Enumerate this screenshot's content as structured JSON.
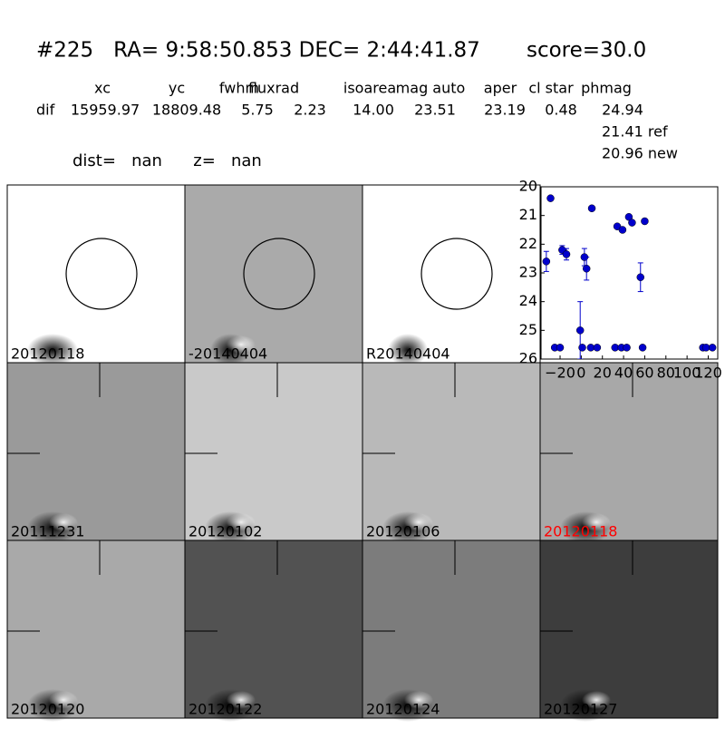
{
  "header": {
    "title": "#225   RA= 9:58:50.853 DEC= 2:44:41.87       score=30.0",
    "columns": [
      "xc",
      "yc",
      "fwhm",
      "fluxrad",
      "isoarea",
      "mag auto",
      "aper",
      "cl star",
      "phmag"
    ],
    "row_label": "dif",
    "row": [
      "15959.97",
      "18809.48",
      "5.75",
      "2.23",
      "14.00",
      "23.51",
      "23.19",
      "0.48",
      "24.94"
    ],
    "extra": [
      "21.41 ref",
      "20.96 new"
    ],
    "dist_line": "dist=   nan      z=   nan"
  },
  "tiles": [
    {
      "label": "20120118"
    },
    {
      "label": "-20140404"
    },
    {
      "label": "R20140404"
    },
    {
      "label": "20111231"
    },
    {
      "label": "20120102"
    },
    {
      "label": "20120106"
    },
    {
      "label": "20120118"
    },
    {
      "label": "20120120"
    },
    {
      "label": "20120122"
    },
    {
      "label": "20120124"
    },
    {
      "label": "20120127"
    }
  ],
  "chart_data": {
    "type": "scatter",
    "color": "#0000cc",
    "x": [
      -33,
      -29,
      -25,
      -20,
      -18,
      -14,
      -1,
      1,
      3,
      5,
      10,
      9,
      15,
      32,
      38,
      43,
      34,
      39,
      45,
      48,
      56,
      58,
      60,
      115,
      118,
      124
    ],
    "values": [
      22.6,
      20.4,
      25.6,
      25.6,
      22.2,
      22.35,
      25.0,
      25.6,
      22.45,
      22.85,
      20.75,
      25.6,
      25.6,
      25.6,
      25.6,
      25.6,
      21.38,
      21.5,
      21.05,
      21.25,
      23.15,
      25.6,
      21.2,
      25.6,
      25.6,
      25.6
    ],
    "errors": [
      0.35,
      null,
      null,
      null,
      0.15,
      0.2,
      1.0,
      null,
      0.3,
      0.4,
      null,
      null,
      null,
      null,
      null,
      null,
      0.07,
      null,
      0.07,
      null,
      0.5,
      null,
      0.07,
      null,
      null,
      null
    ],
    "xlim": [
      -38,
      129
    ],
    "ylim": [
      20,
      26
    ],
    "y_inverted": true,
    "xticks": [
      {
        "value": -20,
        "label": "−20"
      },
      0,
      20,
      40,
      60,
      80,
      100,
      120
    ],
    "yticks": [
      20,
      21,
      22,
      23,
      24,
      25,
      26
    ]
  }
}
